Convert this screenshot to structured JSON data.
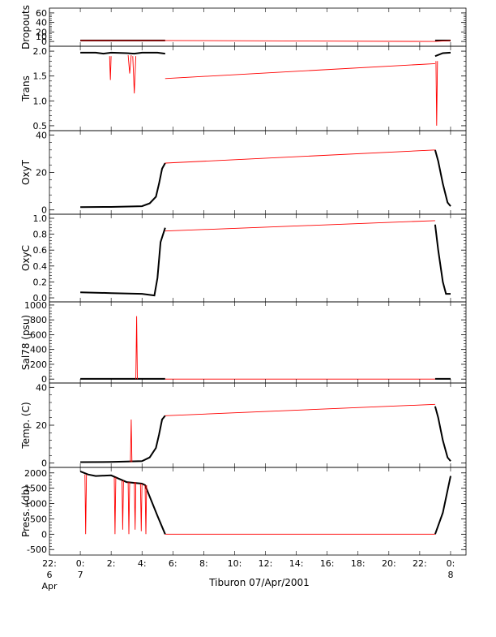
{
  "chart_data": {
    "type": "line",
    "footer_title": "Tiburon 07/Apr/2001",
    "x_range_hours": [
      -2,
      25
    ],
    "x_ticks": [
      {
        "hour": -2,
        "lines": [
          "22:",
          "6",
          "Apr"
        ]
      },
      {
        "hour": 0,
        "lines": [
          "0:",
          "7"
        ]
      },
      {
        "hour": 2,
        "lines": [
          "2:"
        ]
      },
      {
        "hour": 4,
        "lines": [
          "4:"
        ]
      },
      {
        "hour": 6,
        "lines": [
          "6:"
        ]
      },
      {
        "hour": 8,
        "lines": [
          "8:"
        ]
      },
      {
        "hour": 10,
        "lines": [
          "10:"
        ]
      },
      {
        "hour": 12,
        "lines": [
          "12:"
        ]
      },
      {
        "hour": 14,
        "lines": [
          "14:"
        ]
      },
      {
        "hour": 16,
        "lines": [
          "16:"
        ]
      },
      {
        "hour": 18,
        "lines": [
          "18:"
        ]
      },
      {
        "hour": 20,
        "lines": [
          "20:"
        ]
      },
      {
        "hour": 22,
        "lines": [
          "22:"
        ]
      },
      {
        "hour": 24,
        "lines": [
          "0:",
          "8"
        ]
      }
    ],
    "colors": {
      "data": "#000000",
      "fit": "#ff0000"
    },
    "panels": [
      {
        "name": "Dropouts",
        "ylabel": "Dropouts",
        "ylim": [
          -5,
          65
        ],
        "ticks": [
          0,
          20,
          40,
          60
        ],
        "tick_labels": [
          "0",
          "20",
          "40",
          "60"
        ],
        "extra_ticks": [
          10
        ],
        "extra_tick_labels": [
          "10"
        ],
        "series": [
          {
            "kind": "data",
            "points": [
              [
                0,
                2
              ],
              [
                5.5,
                2
              ]
            ]
          },
          {
            "kind": "data",
            "points": [
              [
                23,
                2
              ],
              [
                24,
                2
              ]
            ]
          },
          {
            "kind": "fit",
            "points": [
              [
                0,
                2
              ],
              [
                5.5,
                2
              ],
              [
                23,
                0
              ],
              [
                24,
                2
              ]
            ]
          }
        ]
      },
      {
        "name": "Trans",
        "ylabel": "Trans",
        "ylim": [
          0.45,
          2.05
        ],
        "ticks": [
          0.5,
          1.0,
          1.5,
          2.0
        ],
        "tick_labels": [
          "0.5",
          "1.0",
          "1.5",
          "2.0"
        ],
        "series": [
          {
            "kind": "data",
            "points": [
              [
                0,
                1.97
              ],
              [
                1,
                1.97
              ],
              [
                1.5,
                1.95
              ],
              [
                2,
                1.97
              ],
              [
                3,
                1.96
              ],
              [
                3.5,
                1.95
              ],
              [
                4,
                1.97
              ],
              [
                5,
                1.97
              ],
              [
                5.5,
                1.95
              ]
            ]
          },
          {
            "kind": "data",
            "points": [
              [
                23,
                1.9
              ],
              [
                23.5,
                1.96
              ],
              [
                24,
                1.97
              ]
            ]
          },
          {
            "kind": "fit",
            "points": [
              [
                5.5,
                1.45
              ],
              [
                23,
                1.75
              ]
            ]
          },
          {
            "kind": "fit",
            "points": [
              [
                1.9,
                1.9
              ],
              [
                1.95,
                1.42
              ],
              [
                2.0,
                1.9
              ]
            ]
          },
          {
            "kind": "fit",
            "points": [
              [
                3.4,
                1.9
              ],
              [
                3.5,
                1.15
              ],
              [
                3.6,
                1.9
              ]
            ]
          },
          {
            "kind": "fit",
            "points": [
              [
                3.1,
                1.92
              ],
              [
                3.2,
                1.55
              ],
              [
                3.3,
                1.92
              ]
            ]
          },
          {
            "kind": "fit",
            "points": [
              [
                23.05,
                1.8
              ],
              [
                23.1,
                0.5
              ],
              [
                23.15,
                1.8
              ]
            ]
          }
        ]
      },
      {
        "name": "OxyT",
        "ylabel": "OxyT",
        "ylim": [
          -1,
          41
        ],
        "ticks": [
          0,
          20,
          40
        ],
        "tick_labels": [
          "0",
          "20",
          "40"
        ],
        "series": [
          {
            "kind": "data",
            "points": [
              [
                0,
                1.5
              ],
              [
                2,
                1.6
              ],
              [
                4,
                2
              ],
              [
                4.5,
                3.5
              ],
              [
                4.9,
                7
              ],
              [
                5.1,
                14
              ],
              [
                5.3,
                22
              ],
              [
                5.5,
                25
              ]
            ]
          },
          {
            "kind": "data",
            "points": [
              [
                23,
                32
              ],
              [
                23.2,
                26
              ],
              [
                23.5,
                14
              ],
              [
                23.8,
                4
              ],
              [
                24,
                2
              ]
            ]
          },
          {
            "kind": "fit",
            "points": [
              [
                5.5,
                25
              ],
              [
                23,
                32
              ]
            ]
          }
        ]
      },
      {
        "name": "OxyC",
        "ylabel": "OxyC",
        "ylim": [
          -0.02,
          1.02
        ],
        "ticks": [
          0.0,
          0.2,
          0.4,
          0.6,
          0.8,
          1.0
        ],
        "tick_labels": [
          "0.0",
          "0.2",
          "0.4",
          "0.6",
          "0.8",
          "1.0"
        ],
        "series": [
          {
            "kind": "data",
            "points": [
              [
                0,
                0.07
              ],
              [
                2,
                0.06
              ],
              [
                4,
                0.05
              ],
              [
                4.8,
                0.03
              ],
              [
                5.0,
                0.25
              ],
              [
                5.2,
                0.7
              ],
              [
                5.5,
                0.88
              ]
            ]
          },
          {
            "kind": "data",
            "points": [
              [
                23,
                0.92
              ],
              [
                23.2,
                0.6
              ],
              [
                23.5,
                0.2
              ],
              [
                23.7,
                0.05
              ],
              [
                24,
                0.05
              ]
            ]
          },
          {
            "kind": "fit",
            "points": [
              [
                5.5,
                0.84
              ],
              [
                23,
                0.97
              ]
            ]
          }
        ]
      },
      {
        "name": "Sal78",
        "ylabel": "Sal78 (psu)",
        "ylim": [
          -20,
          1010
        ],
        "ticks": [
          0,
          200,
          400,
          600,
          800,
          1000
        ],
        "tick_labels": [
          "0",
          "200",
          "400",
          "600",
          "800",
          "1000"
        ],
        "series": [
          {
            "kind": "data",
            "points": [
              [
                0,
                3
              ],
              [
                5.5,
                3
              ]
            ]
          },
          {
            "kind": "data",
            "points": [
              [
                23,
                3
              ],
              [
                24,
                3
              ]
            ]
          },
          {
            "kind": "fit",
            "points": [
              [
                5.5,
                0
              ],
              [
                23,
                0
              ]
            ]
          },
          {
            "kind": "fit",
            "points": [
              [
                3.6,
                0
              ],
              [
                3.65,
                850
              ],
              [
                3.7,
                0
              ]
            ]
          }
        ]
      },
      {
        "name": "Temp",
        "ylabel": "Temp. (C)",
        "ylim": [
          -1,
          41
        ],
        "ticks": [
          0,
          20,
          40
        ],
        "tick_labels": [
          "0",
          "20",
          "40"
        ],
        "series": [
          {
            "kind": "data",
            "points": [
              [
                0,
                0.5
              ],
              [
                2,
                0.6
              ],
              [
                4,
                1
              ],
              [
                4.5,
                3
              ],
              [
                4.9,
                8
              ],
              [
                5.1,
                15
              ],
              [
                5.3,
                23
              ],
              [
                5.5,
                25
              ]
            ]
          },
          {
            "kind": "data",
            "points": [
              [
                23,
                30
              ],
              [
                23.2,
                24
              ],
              [
                23.5,
                12
              ],
              [
                23.8,
                3
              ],
              [
                24,
                1
              ]
            ]
          },
          {
            "kind": "fit",
            "points": [
              [
                5.5,
                25
              ],
              [
                23,
                31
              ]
            ]
          },
          {
            "kind": "fit",
            "points": [
              [
                3.25,
                0.5
              ],
              [
                3.3,
                23
              ],
              [
                3.35,
                0.5
              ]
            ]
          }
        ]
      },
      {
        "name": "Press",
        "ylabel": "Press. (db)",
        "ylim": [
          -600,
          2100
        ],
        "ticks": [
          -500,
          0,
          500,
          1000,
          1500,
          2000
        ],
        "tick_labels": [
          "-500",
          "0",
          "500",
          "1000",
          "1500",
          "2000"
        ],
        "series": [
          {
            "kind": "data",
            "points": [
              [
                0,
                2050
              ],
              [
                0.5,
                1950
              ],
              [
                1,
                1900
              ],
              [
                2,
                1920
              ],
              [
                3,
                1700
              ],
              [
                4,
                1650
              ],
              [
                4.2,
                1600
              ],
              [
                5,
                600
              ],
              [
                5.5,
                0
              ]
            ]
          },
          {
            "kind": "data",
            "points": [
              [
                23,
                0
              ],
              [
                23.5,
                700
              ],
              [
                24,
                1900
              ]
            ]
          },
          {
            "kind": "fit",
            "points": [
              [
                5.5,
                0
              ],
              [
                23,
                0
              ]
            ]
          },
          {
            "kind": "fit",
            "points": [
              [
                0.3,
                1950
              ],
              [
                0.35,
                0
              ],
              [
                0.4,
                1950
              ]
            ]
          },
          {
            "kind": "fit",
            "points": [
              [
                2.2,
                1850
              ],
              [
                2.25,
                0
              ],
              [
                2.3,
                1850
              ]
            ]
          },
          {
            "kind": "fit",
            "points": [
              [
                2.7,
                1750
              ],
              [
                2.75,
                150
              ],
              [
                2.8,
                1750
              ]
            ]
          },
          {
            "kind": "fit",
            "points": [
              [
                3.1,
                1700
              ],
              [
                3.15,
                0
              ],
              [
                3.2,
                1700
              ]
            ]
          },
          {
            "kind": "fit",
            "points": [
              [
                3.5,
                1700
              ],
              [
                3.55,
                150
              ],
              [
                3.6,
                1700
              ]
            ]
          },
          {
            "kind": "fit",
            "points": [
              [
                3.9,
                1650
              ],
              [
                3.95,
                100
              ],
              [
                4.0,
                1650
              ]
            ]
          },
          {
            "kind": "fit",
            "points": [
              [
                4.2,
                1600
              ],
              [
                4.25,
                0
              ],
              [
                4.3,
                1600
              ]
            ]
          }
        ]
      }
    ]
  }
}
